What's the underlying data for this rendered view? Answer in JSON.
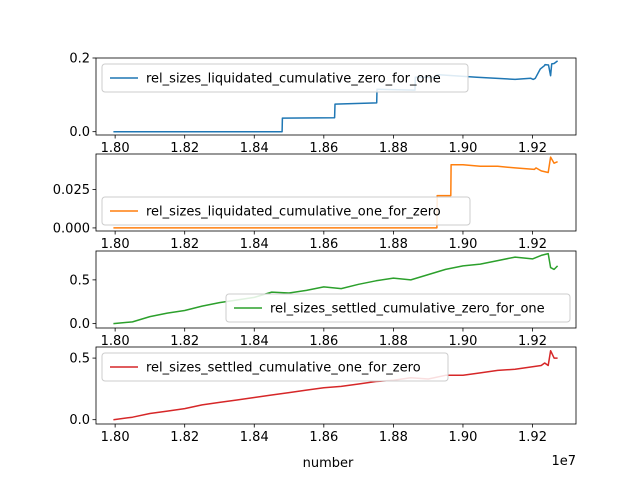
{
  "figure": {
    "xlabel": "number",
    "x_offset_label": "1e7"
  },
  "chart_data": [
    {
      "type": "line",
      "xlim": [
        1.7945,
        1.9325
      ],
      "ylim": [
        -0.009,
        0.2
      ],
      "xticks": [
        1.8,
        1.82,
        1.84,
        1.86,
        1.88,
        1.9,
        1.92
      ],
      "xtick_labels": [
        "1.80",
        "1.82",
        "1.84",
        "1.86",
        "1.88",
        "1.90",
        "1.92"
      ],
      "yticks": [
        0.0,
        0.2
      ],
      "ytick_labels": [
        "0.0",
        "0.2"
      ],
      "legend": "top-left",
      "series": [
        {
          "name": "rel_sizes_liquidated_cumulative_zero_for_one",
          "color": "#1f77b4",
          "x": [
            1.7995,
            1.848,
            1.8481,
            1.8631,
            1.8632,
            1.8752,
            1.8753,
            1.8862,
            1.8863,
            1.8925,
            1.8926,
            1.904,
            1.915,
            1.9195,
            1.9202,
            1.9208,
            1.9222,
            1.9235,
            1.9236,
            1.9246,
            1.9252,
            1.9255,
            1.9262,
            1.9272
          ],
          "y": [
            0.0,
            0.0,
            0.037,
            0.038,
            0.075,
            0.078,
            0.115,
            0.113,
            0.148,
            0.147,
            0.155,
            0.148,
            0.142,
            0.145,
            0.142,
            0.145,
            0.17,
            0.18,
            0.182,
            0.181,
            0.152,
            0.184,
            0.185,
            0.192
          ]
        }
      ]
    },
    {
      "type": "line",
      "xlim": [
        1.7945,
        1.9325
      ],
      "ylim": [
        -0.002,
        0.048
      ],
      "xticks": [
        1.8,
        1.82,
        1.84,
        1.86,
        1.88,
        1.9,
        1.92
      ],
      "xtick_labels": [
        "1.80",
        "1.82",
        "1.84",
        "1.86",
        "1.88",
        "1.90",
        "1.92"
      ],
      "yticks": [
        0.0,
        0.025
      ],
      "ytick_labels": [
        "0.000",
        "0.025"
      ],
      "legend": "bottom-left",
      "series": [
        {
          "name": "rel_sizes_liquidated_cumulative_one_for_zero",
          "color": "#ff7f0e",
          "x": [
            1.7995,
            1.8925,
            1.8926,
            1.8965,
            1.8966,
            1.9,
            1.905,
            1.91,
            1.915,
            1.9205,
            1.921,
            1.9225,
            1.9245,
            1.9252,
            1.9262,
            1.9272
          ],
          "y": [
            0.0,
            0.0,
            0.021,
            0.021,
            0.041,
            0.041,
            0.04,
            0.04,
            0.039,
            0.038,
            0.039,
            0.037,
            0.036,
            0.046,
            0.042,
            0.043
          ]
        }
      ]
    },
    {
      "type": "line",
      "xlim": [
        1.7945,
        1.9325
      ],
      "ylim": [
        -0.05,
        0.83
      ],
      "xticks": [
        1.8,
        1.82,
        1.84,
        1.86,
        1.88,
        1.9,
        1.92
      ],
      "xtick_labels": [
        "1.80",
        "1.82",
        "1.84",
        "1.86",
        "1.88",
        "1.90",
        "1.92"
      ],
      "yticks": [
        0.0,
        0.5
      ],
      "ytick_labels": [
        "0.0",
        "0.5"
      ],
      "legend": "bottom-right",
      "series": [
        {
          "name": "rel_sizes_settled_cumulative_zero_for_one",
          "color": "#2ca02c",
          "x": [
            1.7995,
            1.805,
            1.81,
            1.815,
            1.82,
            1.825,
            1.83,
            1.835,
            1.84,
            1.845,
            1.85,
            1.855,
            1.86,
            1.865,
            1.87,
            1.875,
            1.88,
            1.885,
            1.89,
            1.895,
            1.9,
            1.905,
            1.91,
            1.915,
            1.92,
            1.9225,
            1.9245,
            1.9252,
            1.9262,
            1.9272
          ],
          "y": [
            0.0,
            0.02,
            0.08,
            0.12,
            0.15,
            0.2,
            0.24,
            0.27,
            0.3,
            0.36,
            0.35,
            0.38,
            0.42,
            0.4,
            0.45,
            0.49,
            0.52,
            0.5,
            0.56,
            0.62,
            0.66,
            0.68,
            0.72,
            0.76,
            0.74,
            0.78,
            0.8,
            0.64,
            0.62,
            0.66
          ]
        }
      ]
    },
    {
      "type": "line",
      "xlim": [
        1.7945,
        1.9325
      ],
      "ylim": [
        -0.035,
        0.59
      ],
      "xticks": [
        1.8,
        1.82,
        1.84,
        1.86,
        1.88,
        1.9,
        1.92
      ],
      "xtick_labels": [
        "1.80",
        "1.82",
        "1.84",
        "1.86",
        "1.88",
        "1.90",
        "1.92"
      ],
      "yticks": [
        0.0,
        0.5
      ],
      "ytick_labels": [
        "0.0",
        "0.5"
      ],
      "legend": "top-left",
      "series": [
        {
          "name": "rel_sizes_settled_cumulative_one_for_zero",
          "color": "#d62728",
          "x": [
            1.7995,
            1.805,
            1.81,
            1.815,
            1.82,
            1.825,
            1.83,
            1.835,
            1.84,
            1.845,
            1.85,
            1.855,
            1.86,
            1.865,
            1.87,
            1.875,
            1.88,
            1.885,
            1.89,
            1.895,
            1.9,
            1.905,
            1.91,
            1.915,
            1.92,
            1.9225,
            1.9235,
            1.9245,
            1.9252,
            1.9262,
            1.9272
          ],
          "y": [
            0.0,
            0.02,
            0.05,
            0.07,
            0.09,
            0.12,
            0.14,
            0.16,
            0.18,
            0.2,
            0.22,
            0.24,
            0.26,
            0.27,
            0.29,
            0.31,
            0.32,
            0.34,
            0.33,
            0.36,
            0.36,
            0.38,
            0.4,
            0.41,
            0.43,
            0.44,
            0.46,
            0.44,
            0.56,
            0.5,
            0.5
          ]
        }
      ]
    }
  ]
}
